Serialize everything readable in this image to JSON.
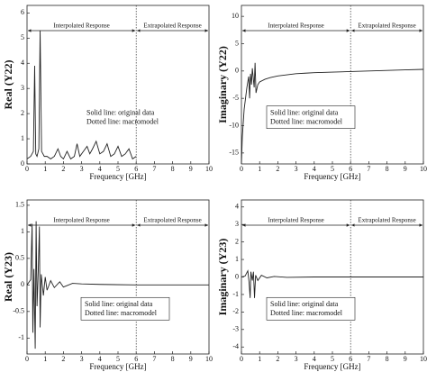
{
  "chart_data": [
    {
      "type": "line",
      "x_label": "Frequency [GHz]",
      "y_label": "Real (Y22)",
      "xlim": [
        0,
        10
      ],
      "xticks": [
        0,
        1,
        2,
        3,
        4,
        5,
        6,
        7,
        8,
        9,
        10
      ],
      "ylim": [
        0,
        6.3
      ],
      "yticks": [
        0,
        1,
        2,
        3,
        4,
        5,
        6
      ],
      "boundary": 6,
      "left_region": "Interpolated Response",
      "right_region": "Extrapolated Response",
      "notes": [
        "Solid line: original data",
        "Dotted line: macromodel"
      ],
      "color": "#222",
      "x": [
        0,
        0.2,
        0.35,
        0.42,
        0.48,
        0.55,
        0.65,
        0.72,
        0.8,
        0.95,
        1.1,
        1.3,
        1.5,
        1.7,
        1.85,
        2.0,
        2.2,
        2.4,
        2.6,
        2.75,
        2.9,
        3.1,
        3.3,
        3.45,
        3.6,
        3.8,
        4.0,
        4.2,
        4.4,
        4.6,
        4.8,
        5.0,
        5.2,
        5.4,
        5.6,
        5.8,
        6.0
      ],
      "values": [
        0.2,
        0.3,
        0.5,
        3.9,
        0.4,
        0.3,
        0.6,
        5.3,
        0.5,
        0.3,
        0.3,
        0.2,
        0.3,
        0.6,
        0.3,
        0.2,
        0.5,
        0.2,
        0.3,
        0.8,
        0.3,
        0.5,
        0.7,
        0.4,
        0.6,
        0.9,
        0.4,
        0.5,
        0.8,
        0.3,
        0.4,
        0.7,
        0.3,
        0.4,
        0.6,
        0.2,
        0.3
      ]
    },
    {
      "type": "line",
      "x_label": "Frequency [GHz]",
      "y_label": "Imaginary (Y22)",
      "xlim": [
        0,
        10
      ],
      "xticks": [
        0,
        1,
        2,
        3,
        4,
        5,
        6,
        7,
        8,
        9,
        10
      ],
      "ylim": [
        -17,
        12
      ],
      "yticks": [
        -15,
        -10,
        -5,
        0,
        5,
        10
      ],
      "boundary": 6,
      "left_region": "Interpolated Response",
      "right_region": "Extrapolated Response",
      "notes": [
        "Solid line: original data",
        "Dotted line: macromodel"
      ],
      "color": "#222",
      "x": [
        0,
        0.05,
        0.15,
        0.3,
        0.4,
        0.45,
        0.5,
        0.55,
        0.6,
        0.7,
        0.75,
        0.8,
        0.9,
        1.0,
        1.3,
        1.6,
        2,
        2.5,
        3,
        3.5,
        4,
        5,
        6,
        7,
        8,
        9,
        10
      ],
      "values": [
        -17,
        -12,
        -7,
        -3,
        -1,
        -5,
        -0.5,
        -2.5,
        0.5,
        -3,
        1.5,
        -4,
        -2.5,
        -2,
        -1.5,
        -1.2,
        -0.9,
        -0.7,
        -0.5,
        -0.4,
        -0.3,
        -0.2,
        -0.1,
        0,
        0.1,
        0.2,
        0.3
      ]
    },
    {
      "type": "line",
      "x_label": "Frequency [GHz]",
      "y_label": "Real (Y23)",
      "xlim": [
        0,
        10
      ],
      "xticks": [
        0,
        1,
        2,
        3,
        4,
        5,
        6,
        7,
        8,
        9,
        10
      ],
      "ylim": [
        -1.3,
        1.6
      ],
      "yticks": [
        -1,
        -0.5,
        0,
        0.5,
        1,
        1.5
      ],
      "boundary": 6,
      "left_region": "Interpolated Response",
      "right_region": "Extrapolated Response",
      "notes": [
        "Solid line: original data",
        "Dotted line: macromodel"
      ],
      "color": "#222",
      "x": [
        0,
        0.2,
        0.28,
        0.32,
        0.38,
        0.45,
        0.5,
        0.55,
        0.62,
        0.68,
        0.72,
        0.78,
        0.9,
        1.0,
        1.1,
        1.3,
        1.5,
        1.8,
        2.0,
        2.5,
        3,
        4,
        6,
        8,
        10
      ],
      "values": [
        0,
        0.1,
        1.15,
        -0.9,
        0.3,
        -1.2,
        1.2,
        -0.4,
        0.3,
        1.1,
        -0.8,
        0.2,
        -0.2,
        0.15,
        -0.1,
        0.08,
        -0.05,
        0.06,
        -0.04,
        0.03,
        0.02,
        0.01,
        0,
        0,
        0
      ]
    },
    {
      "type": "line",
      "x_label": "Frequency [GHz]",
      "y_label": "Imaginary (Y23)",
      "xlim": [
        0,
        10
      ],
      "xticks": [
        0,
        1,
        2,
        3,
        4,
        5,
        6,
        7,
        8,
        9,
        10
      ],
      "ylim": [
        -4.4,
        4.4
      ],
      "yticks": [
        -4,
        -3,
        -2,
        -1,
        0,
        1,
        2,
        3,
        4
      ],
      "boundary": 6,
      "left_region": "Interpolated Response",
      "right_region": "Extrapolated Response",
      "notes": [
        "Solid line: original data",
        "Dotted line: macromodel"
      ],
      "color": "#222",
      "x": [
        0,
        0.2,
        0.35,
        0.42,
        0.48,
        0.52,
        0.6,
        0.66,
        0.72,
        0.78,
        0.9,
        1.1,
        1.4,
        1.8,
        2.5,
        4,
        6,
        8,
        10
      ],
      "values": [
        0,
        0.05,
        0.35,
        -0.3,
        -1.2,
        0.3,
        -0.2,
        0.3,
        -1.2,
        0.1,
        -0.2,
        0.1,
        -0.05,
        0.03,
        -0.02,
        0,
        0,
        0,
        0
      ]
    }
  ]
}
